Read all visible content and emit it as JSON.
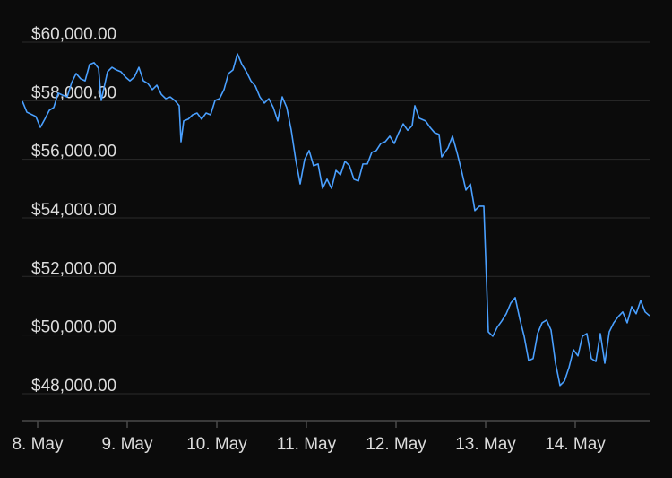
{
  "chart_data": {
    "type": "line",
    "x": [
      7.83,
      7.88,
      7.98,
      8.03,
      8.08,
      8.13,
      8.18,
      8.23,
      8.28,
      8.33,
      8.38,
      8.43,
      8.48,
      8.53,
      8.58,
      8.63,
      8.68,
      8.71,
      8.78,
      8.83,
      8.88,
      8.93,
      8.98,
      9.03,
      9.08,
      9.13,
      9.18,
      9.23,
      9.28,
      9.33,
      9.38,
      9.43,
      9.48,
      9.53,
      9.58,
      9.6,
      9.63,
      9.68,
      9.73,
      9.78,
      9.83,
      9.88,
      9.93,
      9.98,
      10.03,
      10.08,
      10.13,
      10.18,
      10.23,
      10.28,
      10.33,
      10.38,
      10.43,
      10.48,
      10.53,
      10.58,
      10.63,
      10.68,
      10.73,
      10.78,
      10.83,
      10.88,
      10.93,
      10.98,
      11.03,
      11.08,
      11.13,
      11.18,
      11.23,
      11.28,
      11.33,
      11.38,
      11.43,
      11.48,
      11.53,
      11.58,
      11.63,
      11.68,
      11.73,
      11.78,
      11.83,
      11.88,
      11.93,
      11.98,
      12.03,
      12.08,
      12.13,
      12.18,
      12.21,
      12.26,
      12.33,
      12.38,
      12.43,
      12.48,
      12.51,
      12.58,
      12.63,
      12.68,
      12.73,
      12.78,
      12.83,
      12.88,
      12.93,
      12.98,
      13.03,
      13.08,
      13.13,
      13.18,
      13.23,
      13.28,
      13.33,
      13.38,
      13.43,
      13.48,
      13.53,
      13.58,
      13.63,
      13.68,
      13.73,
      13.78,
      13.83,
      13.88,
      13.93,
      13.98,
      14.03,
      14.08,
      14.13,
      14.18,
      14.23,
      14.28,
      14.33,
      14.38,
      14.43,
      14.48,
      14.53,
      14.58,
      14.63,
      14.68,
      14.73,
      14.78,
      14.83
    ],
    "series": [
      {
        "color": "#4aa0ff",
        "values": [
          57980,
          57610,
          57460,
          57090,
          57370,
          57670,
          57770,
          58260,
          58190,
          58130,
          58620,
          58930,
          58750,
          58680,
          59240,
          59300,
          59110,
          58010,
          58990,
          59140,
          59050,
          58990,
          58810,
          58680,
          58810,
          59140,
          58680,
          58590,
          58380,
          58530,
          58220,
          58070,
          58130,
          58010,
          57830,
          56600,
          57310,
          57370,
          57520,
          57580,
          57370,
          57580,
          57520,
          58010,
          58070,
          58380,
          58930,
          59050,
          59600,
          59240,
          58990,
          58680,
          58500,
          58130,
          57920,
          58070,
          57770,
          57310,
          58130,
          57770,
          57000,
          55990,
          55160,
          55990,
          56300,
          55780,
          55840,
          55010,
          55320,
          55010,
          55620,
          55470,
          55930,
          55780,
          55320,
          55260,
          55840,
          55840,
          56240,
          56300,
          56540,
          56600,
          56790,
          56540,
          56910,
          57210,
          56990,
          57150,
          57830,
          57400,
          57310,
          57090,
          56910,
          56850,
          56080,
          56390,
          56790,
          56240,
          55620,
          54950,
          55160,
          54250,
          54400,
          54400,
          50110,
          49960,
          50270,
          50480,
          50730,
          51090,
          51280,
          50570,
          49960,
          49130,
          49200,
          50050,
          50420,
          50510,
          50170,
          49040,
          48280,
          48430,
          48890,
          49500,
          49290,
          49960,
          50050,
          49200,
          49100,
          50050,
          49040,
          50110,
          50420,
          50630,
          50790,
          50420,
          50970,
          50730,
          51180,
          50790,
          50660
        ]
      }
    ],
    "xlim": [
      7.83,
      14.83
    ],
    "xticks": [
      {
        "value": 8,
        "label": "8. May"
      },
      {
        "value": 9,
        "label": "9. May"
      },
      {
        "value": 10,
        "label": "10. May"
      },
      {
        "value": 11,
        "label": "11. May"
      },
      {
        "value": 12,
        "label": "12. May"
      },
      {
        "value": 13,
        "label": "13. May"
      },
      {
        "value": 14,
        "label": "14. May"
      }
    ],
    "ylim": [
      47080,
      60000
    ],
    "yticks": [
      {
        "value": 48000,
        "label": "$48,000.00"
      },
      {
        "value": 50000,
        "label": "$50,000.00"
      },
      {
        "value": 52000,
        "label": "$52,000.00"
      },
      {
        "value": 54000,
        "label": "$54,000.00"
      },
      {
        "value": 56000,
        "label": "$56,000.00"
      },
      {
        "value": 58000,
        "label": "$58,000.00"
      },
      {
        "value": 60000,
        "label": "$60,000.00"
      }
    ],
    "grid": true
  }
}
